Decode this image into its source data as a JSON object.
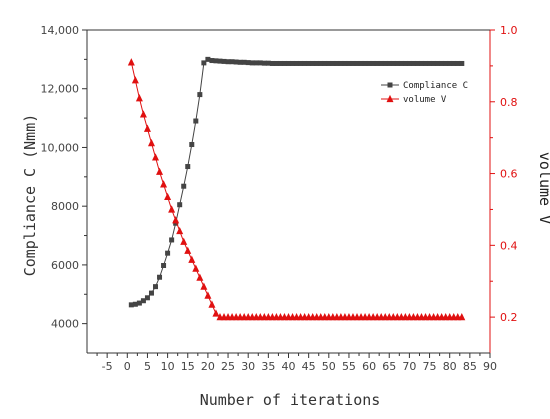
{
  "chart_data": {
    "type": "line",
    "xlabel": "Number of iterations",
    "ylabel_left": "Compliance C (Nmm)",
    "ylabel_right": "volume V",
    "xlim": [
      -10,
      90
    ],
    "xticks": [
      "-5",
      "0",
      "5",
      "10",
      "15",
      "20",
      "25",
      "30",
      "35",
      "40",
      "45",
      "50",
      "55",
      "60",
      "65",
      "70",
      "75",
      "80",
      "85",
      "90"
    ],
    "ylim_left": [
      3000,
      14000
    ],
    "yticks_left": [
      "4000",
      "6000",
      "8000",
      "10,000",
      "12,000",
      "14,000"
    ],
    "ylim_right": [
      0.1,
      1.0
    ],
    "yticks_right": [
      "0.2",
      "0.4",
      "0.6",
      "0.8",
      "1.0"
    ],
    "legend_position": "top-right",
    "series": [
      {
        "name": "Compliance C",
        "axis": "left",
        "marker": "square",
        "color": "#444444",
        "x": [
          1,
          2,
          3,
          4,
          5,
          6,
          7,
          8,
          9,
          10,
          11,
          12,
          13,
          14,
          15,
          16,
          17,
          18,
          19,
          20,
          21,
          22,
          23,
          24,
          25,
          26,
          27,
          28,
          29,
          30,
          31,
          32,
          33,
          34,
          35,
          36,
          37,
          38,
          39,
          40,
          41,
          42,
          43,
          44,
          45,
          46,
          47,
          48,
          49,
          50,
          51,
          52,
          53,
          54,
          55,
          56,
          57,
          58,
          59,
          60,
          61,
          62,
          63,
          64,
          65,
          66,
          67,
          68,
          69,
          70,
          71,
          72,
          73,
          74,
          75,
          76,
          77,
          78,
          79,
          80,
          81,
          82,
          83
        ],
        "y": [
          4640,
          4660,
          4700,
          4780,
          4880,
          5040,
          5260,
          5580,
          5980,
          6400,
          6850,
          7420,
          8050,
          8680,
          9350,
          10100,
          10900,
          11800,
          12880,
          13000,
          12960,
          12950,
          12940,
          12930,
          12920,
          12920,
          12910,
          12900,
          12900,
          12890,
          12880,
          12880,
          12880,
          12870,
          12870,
          12860,
          12860,
          12860,
          12860,
          12860,
          12860,
          12860,
          12860,
          12860,
          12860,
          12860,
          12860,
          12860,
          12860,
          12860,
          12860,
          12860,
          12860,
          12860,
          12860,
          12860,
          12860,
          12860,
          12860,
          12860,
          12860,
          12860,
          12860,
          12860,
          12860,
          12860,
          12860,
          12860,
          12860,
          12860,
          12860,
          12860,
          12860,
          12860,
          12860,
          12860,
          12860,
          12860,
          12860,
          12860,
          12860,
          12860,
          12860
        ]
      },
      {
        "name": "volume V",
        "axis": "right",
        "marker": "triangle",
        "color": "#e01010",
        "x": [
          1,
          2,
          3,
          4,
          5,
          6,
          7,
          8,
          9,
          10,
          11,
          12,
          13,
          14,
          15,
          16,
          17,
          18,
          19,
          20,
          21,
          22,
          23,
          24,
          25,
          26,
          27,
          28,
          29,
          30,
          31,
          32,
          33,
          34,
          35,
          36,
          37,
          38,
          39,
          40,
          41,
          42,
          43,
          44,
          45,
          46,
          47,
          48,
          49,
          50,
          51,
          52,
          53,
          54,
          55,
          56,
          57,
          58,
          59,
          60,
          61,
          62,
          63,
          64,
          65,
          66,
          67,
          68,
          69,
          70,
          71,
          72,
          73,
          74,
          75,
          76,
          77,
          78,
          79,
          80,
          81,
          82,
          83
        ],
        "y": [
          0.91,
          0.86,
          0.81,
          0.765,
          0.725,
          0.685,
          0.645,
          0.605,
          0.57,
          0.535,
          0.5,
          0.47,
          0.44,
          0.41,
          0.385,
          0.36,
          0.335,
          0.31,
          0.285,
          0.26,
          0.235,
          0.21,
          0.2,
          0.2,
          0.2,
          0.2,
          0.2,
          0.2,
          0.2,
          0.2,
          0.2,
          0.2,
          0.2,
          0.2,
          0.2,
          0.2,
          0.2,
          0.2,
          0.2,
          0.2,
          0.2,
          0.2,
          0.2,
          0.2,
          0.2,
          0.2,
          0.2,
          0.2,
          0.2,
          0.2,
          0.2,
          0.2,
          0.2,
          0.2,
          0.2,
          0.2,
          0.2,
          0.2,
          0.2,
          0.2,
          0.2,
          0.2,
          0.2,
          0.2,
          0.2,
          0.2,
          0.2,
          0.2,
          0.2,
          0.2,
          0.2,
          0.2,
          0.2,
          0.2,
          0.2,
          0.2,
          0.2,
          0.2,
          0.2,
          0.2,
          0.2,
          0.2,
          0.2
        ]
      }
    ]
  }
}
